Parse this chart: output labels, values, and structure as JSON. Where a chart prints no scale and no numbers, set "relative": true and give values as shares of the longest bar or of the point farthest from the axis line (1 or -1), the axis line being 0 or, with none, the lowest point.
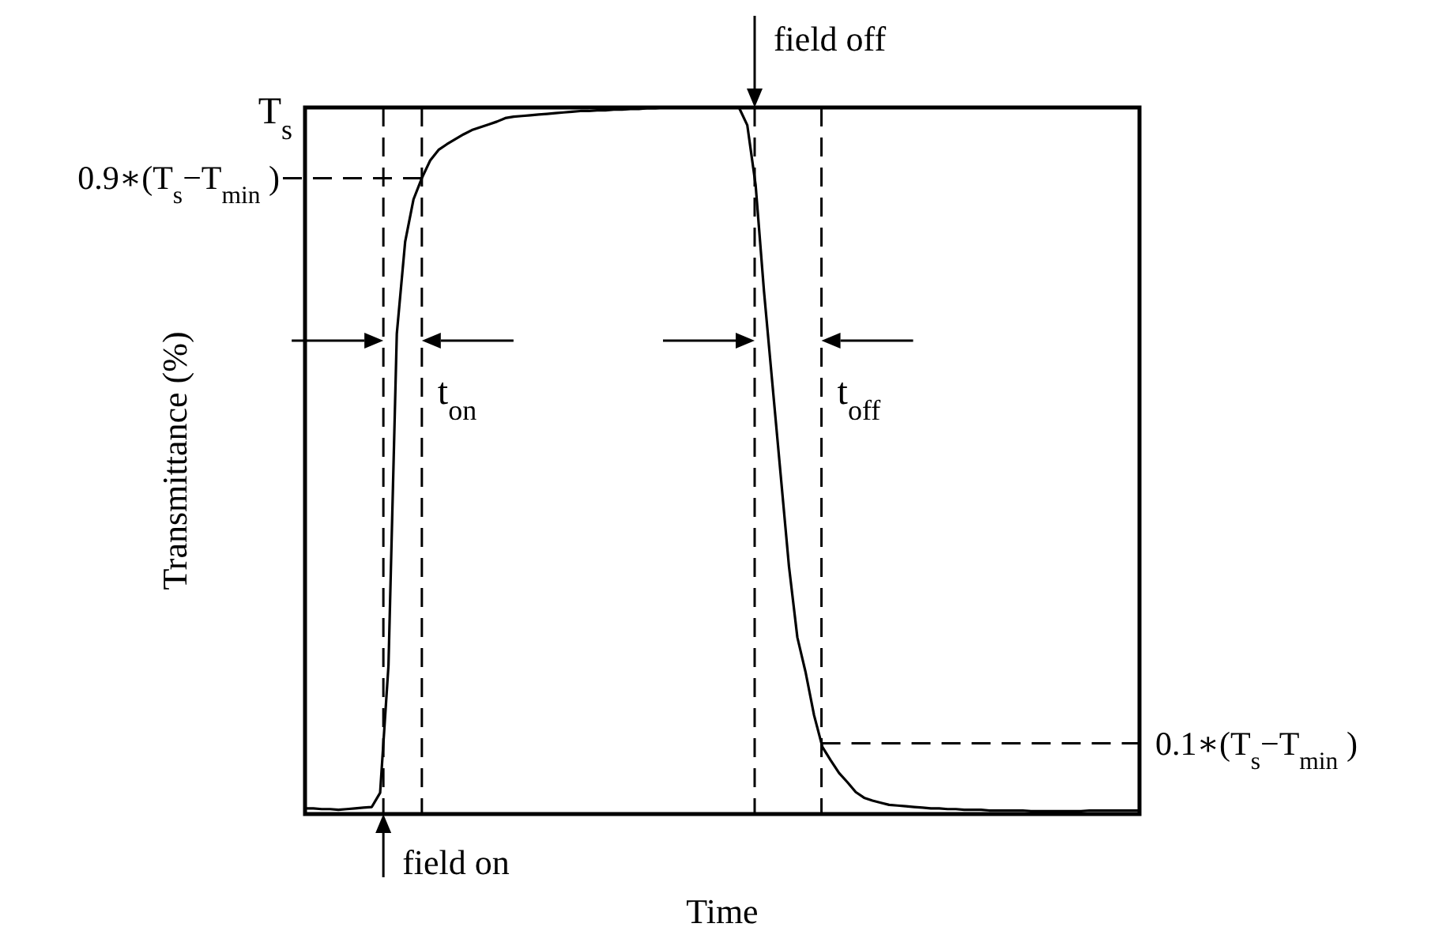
{
  "chart_data": {
    "type": "line",
    "xlabel": "Time",
    "ylabel": "Transmittance (%)",
    "relative": true,
    "color": "#000000",
    "categories": [
      null,
      null,
      null,
      null,
      null,
      null,
      null,
      null,
      null,
      null,
      null,
      null,
      null,
      null,
      null,
      null,
      null,
      null,
      null,
      null,
      null,
      null,
      null,
      null,
      null,
      null,
      null,
      null,
      null,
      null,
      null,
      null,
      null,
      null,
      null,
      null,
      null,
      null,
      null,
      null,
      null,
      null,
      null,
      null,
      null,
      null,
      null,
      null,
      null,
      null,
      null,
      null,
      null,
      null,
      null,
      null,
      null,
      null,
      null,
      null,
      null,
      null,
      null,
      null,
      null,
      null,
      null,
      null,
      null,
      null,
      null,
      null,
      null,
      null,
      null,
      null,
      null,
      null,
      null,
      null,
      null,
      null,
      null,
      null,
      null,
      null,
      null,
      null,
      null,
      null,
      null,
      null,
      null,
      null,
      null,
      null,
      null,
      null,
      null,
      null,
      null
    ],
    "values": [
      0.008,
      0.008,
      0.007,
      0.007,
      0.006,
      0.007,
      0.008,
      0.009,
      0.01,
      0.03,
      0.21,
      0.68,
      0.81,
      0.87,
      0.9,
      0.925,
      0.94,
      0.948,
      0.955,
      0.962,
      0.968,
      0.972,
      0.976,
      0.98,
      0.985,
      0.987,
      0.988,
      0.989,
      0.99,
      0.991,
      0.992,
      0.993,
      0.994,
      0.995,
      0.995,
      0.996,
      0.996,
      0.997,
      0.997,
      0.998,
      0.998,
      0.999,
      0.999,
      1,
      1,
      1,
      1,
      1,
      1,
      1,
      1,
      1,
      1,
      0.975,
      0.89,
      0.74,
      0.61,
      0.48,
      0.35,
      0.25,
      0.2,
      0.14,
      0.095,
      0.076,
      0.058,
      0.045,
      0.031,
      0.023,
      0.019,
      0.016,
      0.013,
      0.012,
      0.011,
      0.01,
      0.009,
      0.008,
      0.008,
      0.007,
      0.007,
      0.006,
      0.006,
      0.006,
      0.005,
      0.005,
      0.005,
      0.005,
      0.005,
      0.004,
      0.004,
      0.004,
      0.004,
      0.004,
      0.004,
      0.004,
      0.005,
      0.005,
      0.005,
      0.005,
      0.005,
      0.005,
      0.005
    ],
    "ref_lines": [
      {
        "axis": "y",
        "value": 0.9,
        "label": "0.9∗(T$_{s}$−T$_{min}$ )",
        "line_style": "dashed"
      },
      {
        "axis": "y",
        "value": 0.1,
        "label": "0.1∗(T$_{s}$−T$_{min}$ )",
        "line_style": "dashed"
      }
    ],
    "annotations": [
      "T$_{s}$",
      "t$_{on}$",
      "t$_{off}$",
      "field on",
      "field off"
    ]
  }
}
